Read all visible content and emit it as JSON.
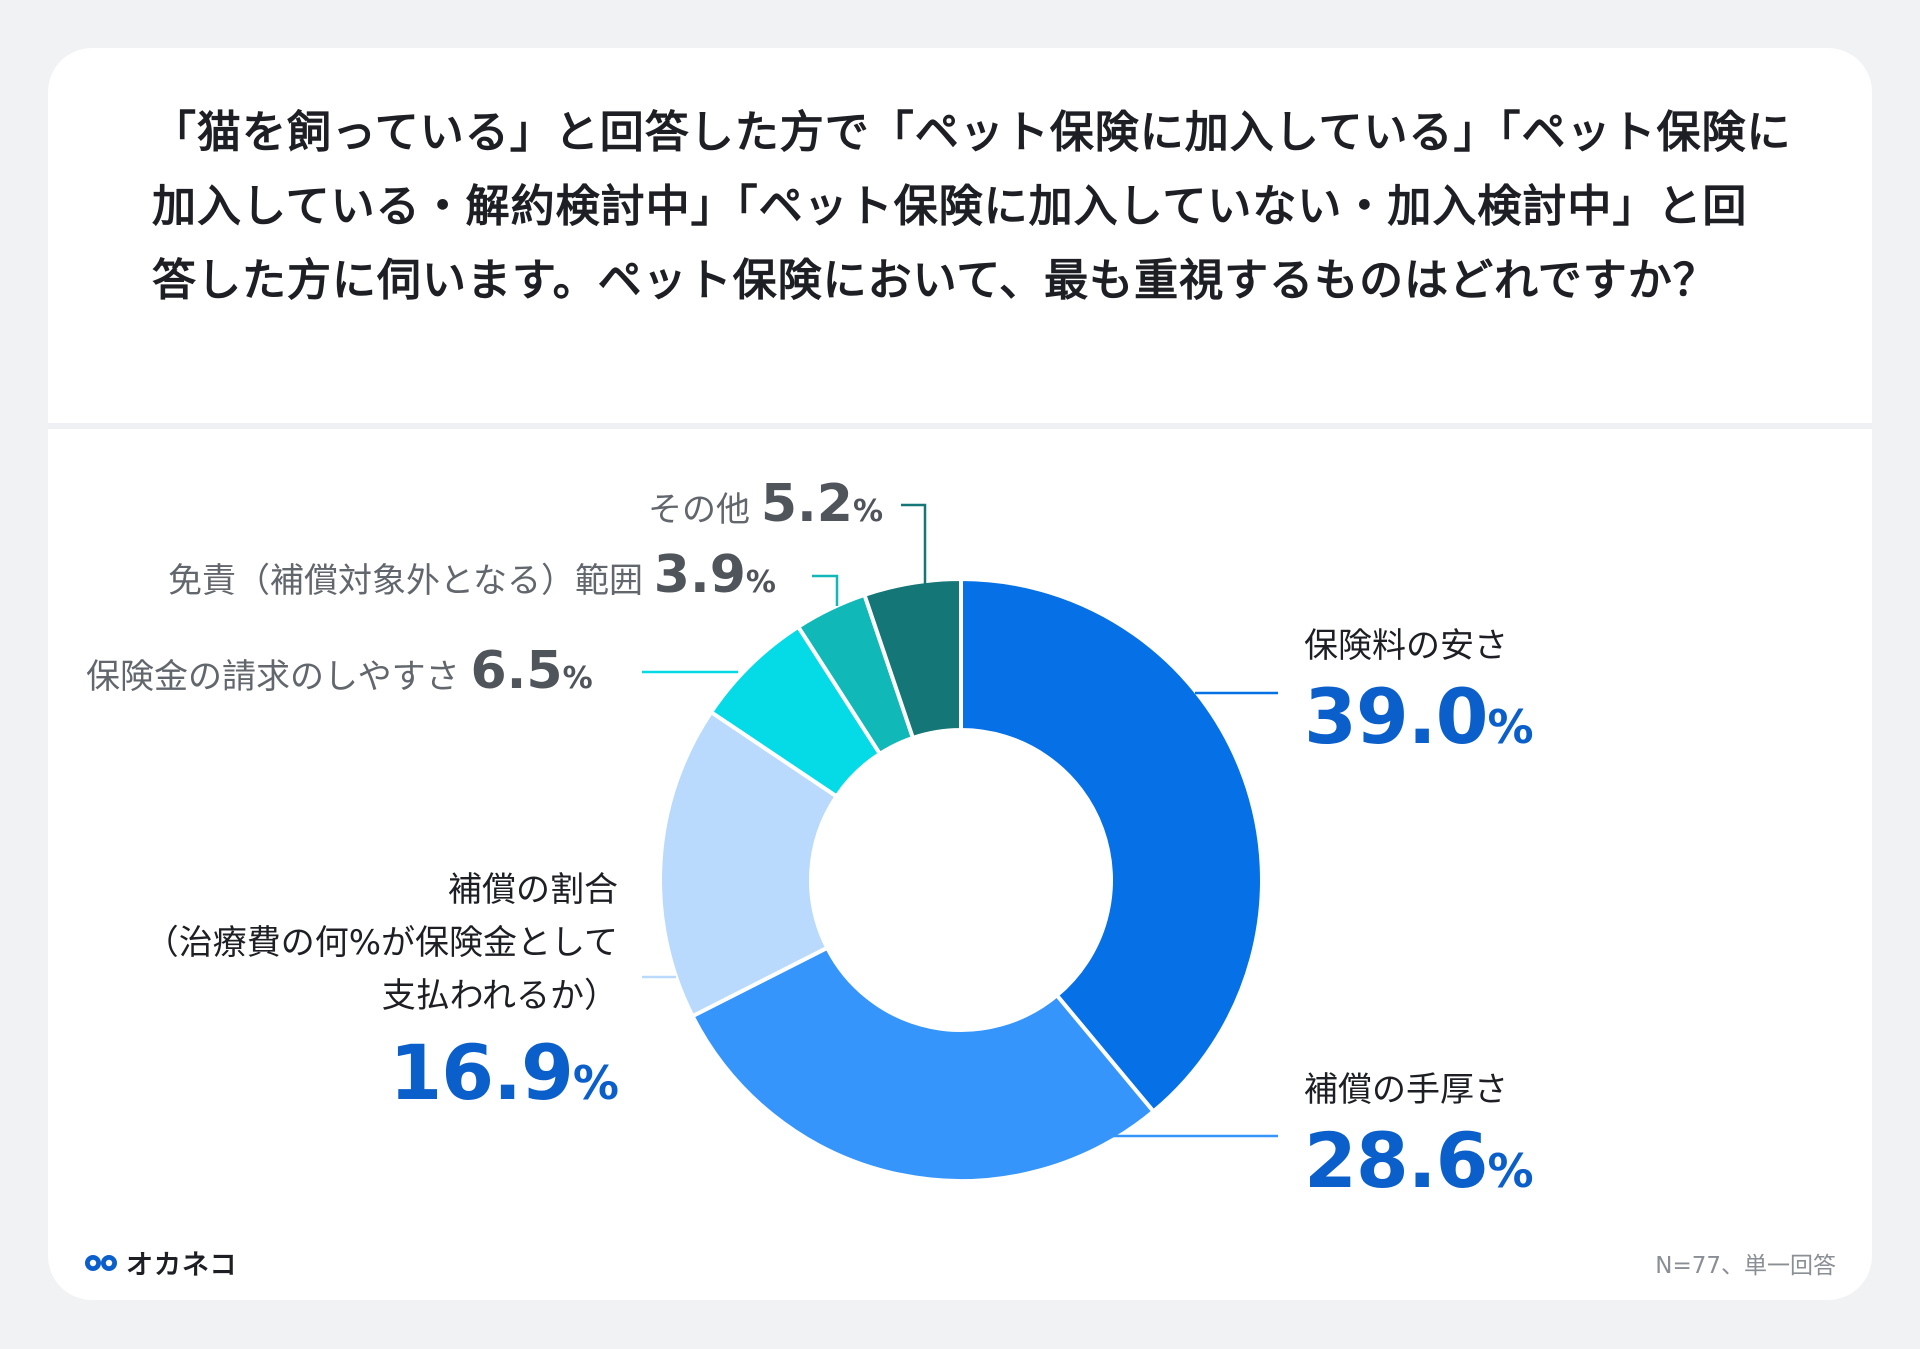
{
  "question": "「猫を飼っている」と回答した方で「ペット保険に加入している」「ペット保険に加入している・解約検討中」「ペット保険に加入していない・加入検討中」と回答した方に伺います。ペット保険において、最も重視するものはどれですか？",
  "chart_data": {
    "type": "pie",
    "donut": true,
    "slices": [
      {
        "label": "保険料の安さ",
        "value": 39.0,
        "color": "#0670e6"
      },
      {
        "label": "補償の手厚さ",
        "value": 28.6,
        "color": "#3595fb"
      },
      {
        "label": "補償の割合（治療費の何%が保険金として支払われるか）",
        "value": 16.9,
        "color": "#b9dafd"
      },
      {
        "label": "保険金の請求のしやすさ",
        "value": 6.5,
        "color": "#05dbe6"
      },
      {
        "label": "免責（補償対象外となる）範囲",
        "value": 3.9,
        "color": "#10b8b7"
      },
      {
        "label": "その他",
        "value": 5.2,
        "color": "#147676"
      }
    ]
  },
  "labels": {
    "s0": {
      "name": "保険料の安さ",
      "num": "39.0",
      "pct": "%"
    },
    "s1": {
      "name": "補償の手厚さ",
      "num": "28.6",
      "pct": "%"
    },
    "s2": {
      "name_lines": [
        "補償の割合",
        "（治療費の何%が保険金として",
        "支払われるか）"
      ],
      "num": "16.9",
      "pct": "%"
    },
    "s3": {
      "name": "保険金の請求のしやすさ",
      "num": "6.5",
      "pct": "%"
    },
    "s4": {
      "name": "免責（補償対象外となる）範囲",
      "num": "3.9",
      "pct": "%"
    },
    "s5": {
      "name": "その他",
      "num": "5.2",
      "pct": "%"
    }
  },
  "logo": {
    "text": "オカネコ",
    "icon": "okaneko-logo-icon",
    "color": "#0b5fca"
  },
  "note": "N=77、単一回答"
}
